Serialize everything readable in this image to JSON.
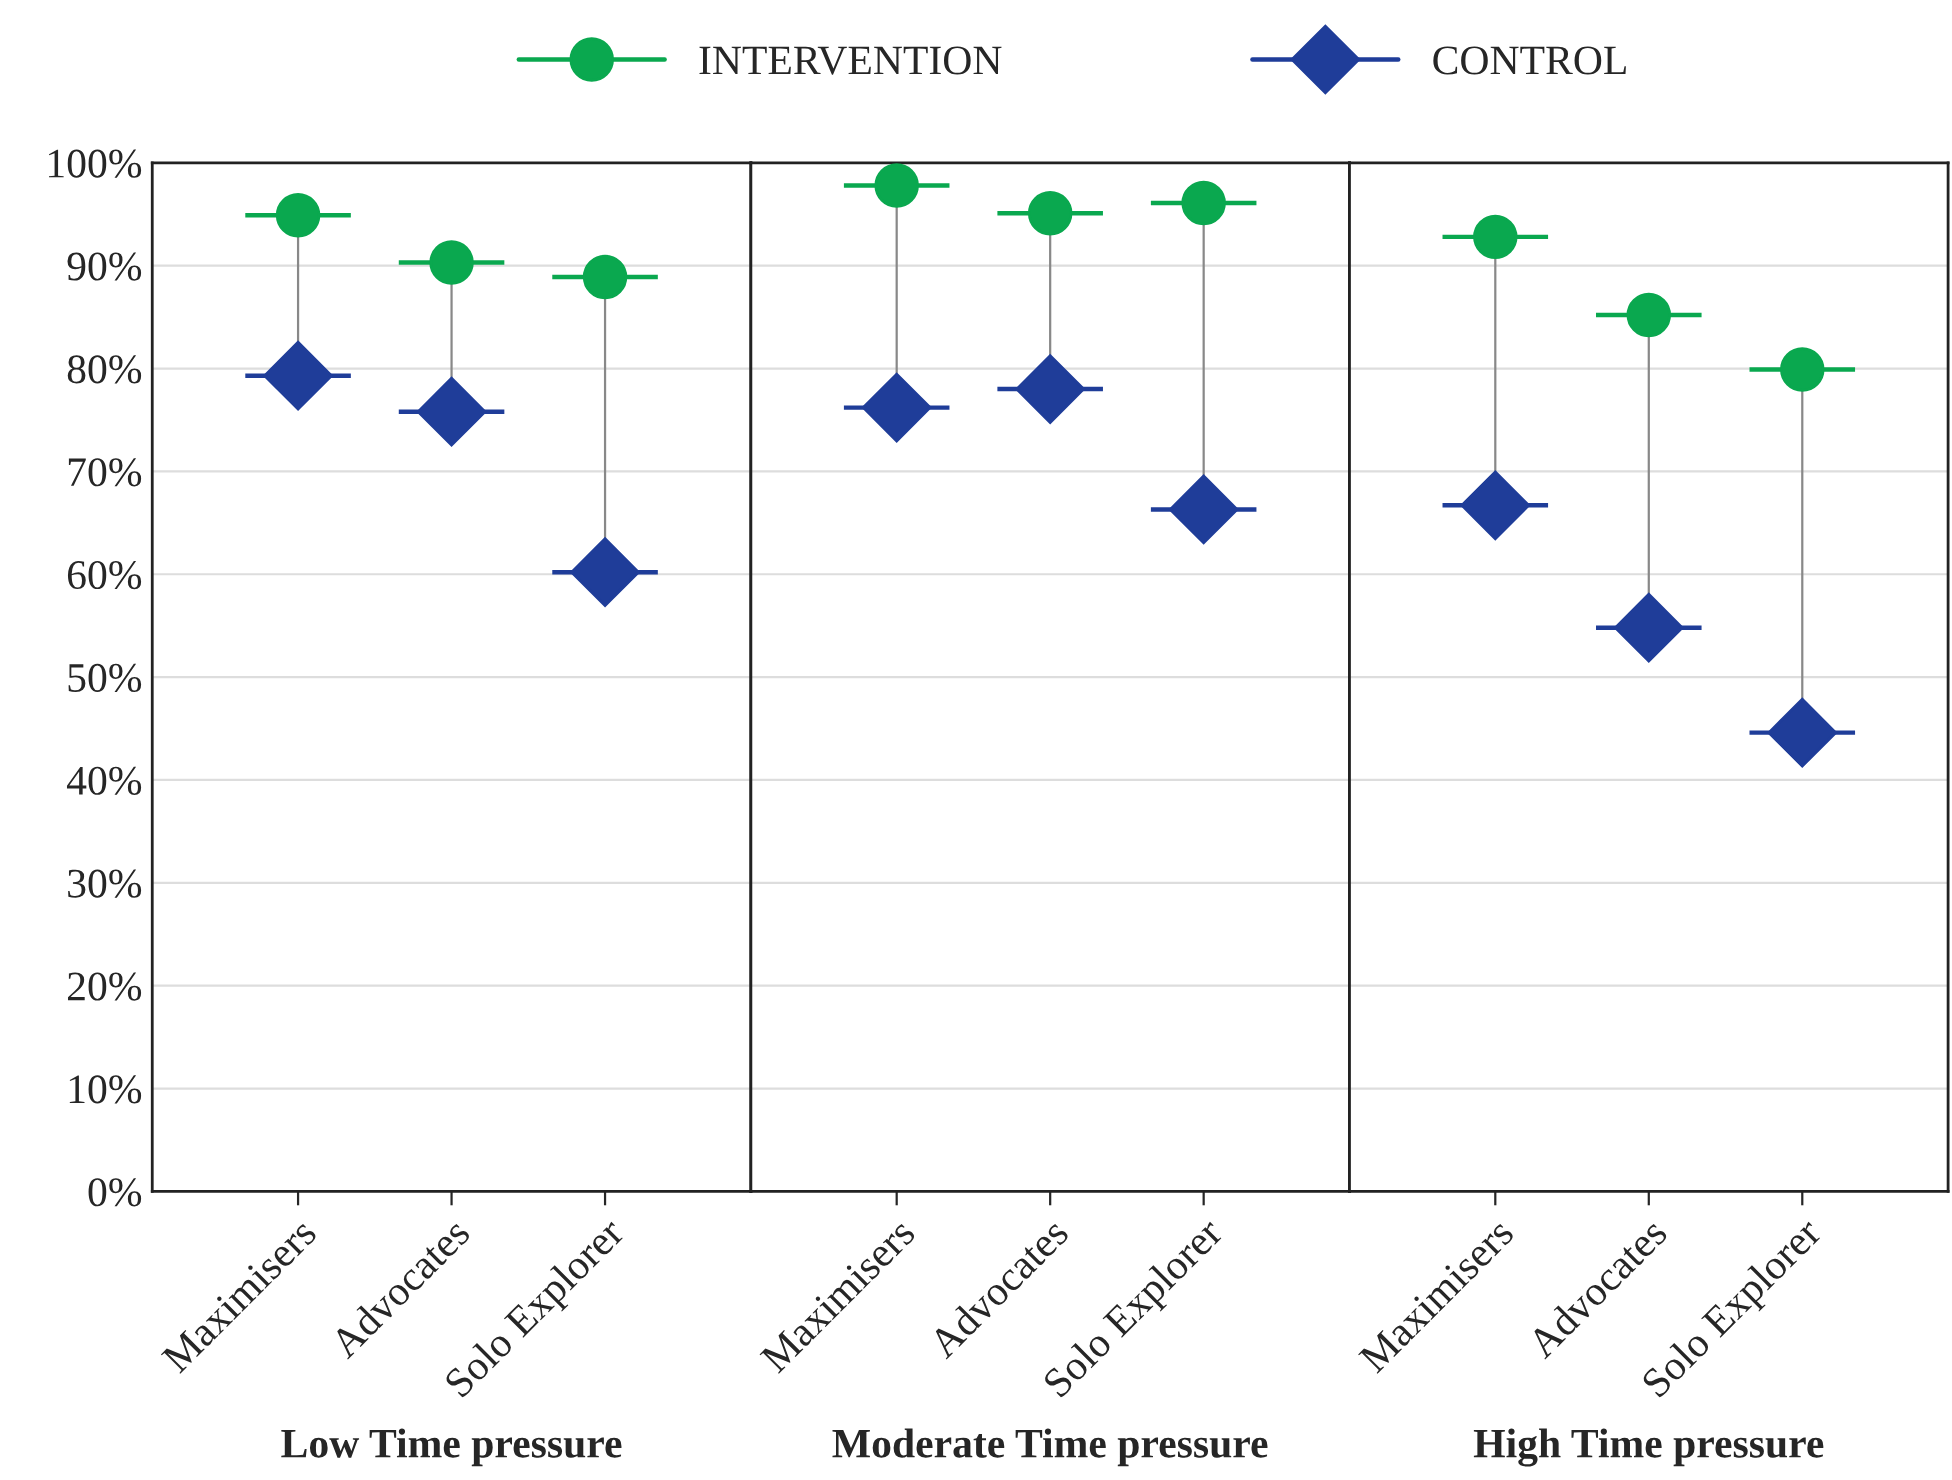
{
  "chart_data": [
    {
      "type": "scatter",
      "xlabel": "Low Time pressure",
      "categories": [
        "Maximisers",
        "Advocates",
        "Solo Explorer"
      ],
      "ylim": [
        0,
        100
      ],
      "yticks": [
        {
          "value": 0,
          "label": "0%"
        },
        {
          "value": 10,
          "label": "10%"
        },
        {
          "value": 20,
          "label": "20%"
        },
        {
          "value": 30,
          "label": "30%"
        },
        {
          "value": 40,
          "label": "40%"
        },
        {
          "value": 50,
          "label": "50%"
        },
        {
          "value": 60,
          "label": "60%"
        },
        {
          "value": 70,
          "label": "70%"
        },
        {
          "value": 80,
          "label": "80%"
        },
        {
          "value": 90,
          "label": "90%"
        },
        {
          "value": 100,
          "label": "100%"
        }
      ],
      "grid": "y",
      "legend": "top",
      "series": [
        {
          "name": "INTERVENTION",
          "color": "#0aa84f",
          "marker": "circle",
          "values": [
            94.9,
            90.3,
            88.9
          ]
        },
        {
          "name": "CONTROL",
          "color": "#1f3d99",
          "marker": "diamond",
          "values": [
            79.3,
            75.8,
            60.2
          ]
        }
      ]
    },
    {
      "type": "scatter",
      "xlabel": "Moderate Time pressure",
      "categories": [
        "Maximisers",
        "Advocates",
        "Solo Explorer"
      ],
      "ylim": [
        0,
        100
      ],
      "yticks": [
        0,
        10,
        20,
        30,
        40,
        50,
        60,
        70,
        80,
        90,
        100
      ],
      "tick_labels": "x",
      "grid": "y",
      "series": [
        {
          "color": "#0aa84f",
          "marker": "circle",
          "values": [
            97.8,
            95.1,
            96.1
          ]
        },
        {
          "color": "#1f3d99",
          "marker": "diamond",
          "values": [
            76.2,
            78,
            66.3
          ]
        }
      ]
    },
    {
      "type": "scatter",
      "xlabel": "High Time pressure",
      "categories": [
        "Maximisers",
        "Advocates",
        "Solo Explorer"
      ],
      "ylim": [
        0,
        100
      ],
      "yticks": [
        0,
        10,
        20,
        30,
        40,
        50,
        60,
        70,
        80,
        90,
        100
      ],
      "tick_labels": "x",
      "grid": "y",
      "series": [
        {
          "color": "#0aa84f",
          "marker": "circle",
          "values": [
            92.8,
            85.2,
            79.9
          ]
        },
        {
          "color": "#1f3d99",
          "marker": "diamond",
          "values": [
            66.7,
            54.8,
            44.6
          ]
        }
      ]
    }
  ]
}
